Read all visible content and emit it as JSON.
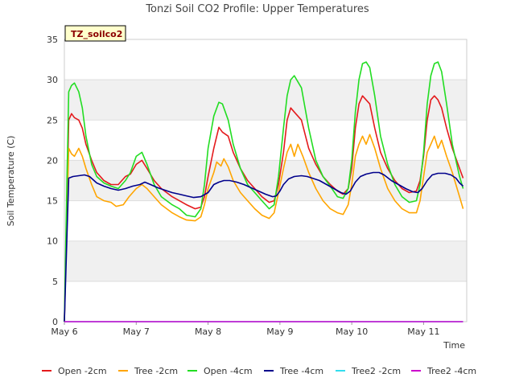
{
  "chart_data": {
    "type": "line",
    "title": "Tonzi Soil CO2 Profile: Upper Temperatures",
    "badge": "TZ_soilco2",
    "xlabel": "Time",
    "ylabel": "Soil Temperature (C)",
    "xlim": [
      0,
      5.6
    ],
    "ylim": [
      0,
      35
    ],
    "yticks": [
      0,
      5,
      10,
      15,
      20,
      25,
      30,
      35
    ],
    "xticks": [
      {
        "value": 0,
        "label": "May 6"
      },
      {
        "value": 1,
        "label": "May 7"
      },
      {
        "value": 2,
        "label": "May 8"
      },
      {
        "value": 3,
        "label": "May 9"
      },
      {
        "value": 4,
        "label": "May 10"
      },
      {
        "value": 5,
        "label": "May 11"
      }
    ],
    "grid_bands": true,
    "legend_position": "bottom",
    "series": [
      {
        "name": "Open -2cm",
        "color": "#e41a1c",
        "points": [
          [
            0,
            0
          ],
          [
            0.03,
            12
          ],
          [
            0.06,
            25
          ],
          [
            0.1,
            25.8
          ],
          [
            0.14,
            25.3
          ],
          [
            0.2,
            25
          ],
          [
            0.25,
            24
          ],
          [
            0.3,
            22
          ],
          [
            0.38,
            20
          ],
          [
            0.45,
            18.5
          ],
          [
            0.55,
            17.5
          ],
          [
            0.65,
            17
          ],
          [
            0.75,
            17
          ],
          [
            0.85,
            18
          ],
          [
            0.92,
            18.3
          ],
          [
            1.0,
            19.5
          ],
          [
            1.08,
            20
          ],
          [
            1.15,
            19
          ],
          [
            1.25,
            17.5
          ],
          [
            1.35,
            16.5
          ],
          [
            1.5,
            15.5
          ],
          [
            1.6,
            15
          ],
          [
            1.7,
            14.5
          ],
          [
            1.82,
            14
          ],
          [
            1.9,
            14.2
          ],
          [
            1.95,
            15.5
          ],
          [
            2.0,
            18
          ],
          [
            2.08,
            21.5
          ],
          [
            2.15,
            24.1
          ],
          [
            2.2,
            23.5
          ],
          [
            2.28,
            23
          ],
          [
            2.35,
            21
          ],
          [
            2.45,
            19
          ],
          [
            2.55,
            17.5
          ],
          [
            2.65,
            16.5
          ],
          [
            2.75,
            15.5
          ],
          [
            2.85,
            14.8
          ],
          [
            2.92,
            15
          ],
          [
            2.98,
            17
          ],
          [
            3.05,
            21
          ],
          [
            3.1,
            25
          ],
          [
            3.15,
            26.5
          ],
          [
            3.2,
            26
          ],
          [
            3.3,
            25
          ],
          [
            3.4,
            21.5
          ],
          [
            3.5,
            19.5
          ],
          [
            3.6,
            18
          ],
          [
            3.7,
            17
          ],
          [
            3.8,
            16.2
          ],
          [
            3.88,
            15.8
          ],
          [
            3.95,
            16.5
          ],
          [
            4.0,
            19
          ],
          [
            4.05,
            24
          ],
          [
            4.1,
            27
          ],
          [
            4.15,
            28
          ],
          [
            4.2,
            27.5
          ],
          [
            4.25,
            27
          ],
          [
            4.32,
            24
          ],
          [
            4.4,
            21
          ],
          [
            4.5,
            19
          ],
          [
            4.6,
            17.5
          ],
          [
            4.7,
            16.5
          ],
          [
            4.8,
            16
          ],
          [
            4.9,
            16.2
          ],
          [
            4.95,
            17.5
          ],
          [
            5.0,
            20.5
          ],
          [
            5.05,
            25
          ],
          [
            5.1,
            27.5
          ],
          [
            5.15,
            28
          ],
          [
            5.2,
            27.5
          ],
          [
            5.25,
            26.5
          ],
          [
            5.32,
            24
          ],
          [
            5.4,
            21.5
          ],
          [
            5.5,
            19
          ],
          [
            5.55,
            17.8
          ]
        ]
      },
      {
        "name": "Tree -2cm",
        "color": "#ffa500",
        "points": [
          [
            0,
            0
          ],
          [
            0.03,
            11
          ],
          [
            0.06,
            21.5
          ],
          [
            0.1,
            20.8
          ],
          [
            0.14,
            20.5
          ],
          [
            0.2,
            21.5
          ],
          [
            0.25,
            20.5
          ],
          [
            0.3,
            19
          ],
          [
            0.38,
            17
          ],
          [
            0.45,
            15.5
          ],
          [
            0.55,
            15
          ],
          [
            0.65,
            14.8
          ],
          [
            0.72,
            14.3
          ],
          [
            0.82,
            14.5
          ],
          [
            0.9,
            15.5
          ],
          [
            1.0,
            16.5
          ],
          [
            1.08,
            17
          ],
          [
            1.15,
            16.5
          ],
          [
            1.25,
            15.5
          ],
          [
            1.35,
            14.5
          ],
          [
            1.5,
            13.5
          ],
          [
            1.6,
            13
          ],
          [
            1.7,
            12.6
          ],
          [
            1.82,
            12.5
          ],
          [
            1.9,
            13
          ],
          [
            1.95,
            14.5
          ],
          [
            2.0,
            16.5
          ],
          [
            2.08,
            18.5
          ],
          [
            2.12,
            19.8
          ],
          [
            2.18,
            19.3
          ],
          [
            2.22,
            20.2
          ],
          [
            2.28,
            19.2
          ],
          [
            2.35,
            17.5
          ],
          [
            2.45,
            16
          ],
          [
            2.55,
            15
          ],
          [
            2.65,
            14
          ],
          [
            2.75,
            13.2
          ],
          [
            2.85,
            12.8
          ],
          [
            2.92,
            13.5
          ],
          [
            2.98,
            16
          ],
          [
            3.05,
            19
          ],
          [
            3.1,
            21
          ],
          [
            3.15,
            22
          ],
          [
            3.2,
            20.5
          ],
          [
            3.25,
            22
          ],
          [
            3.32,
            20.5
          ],
          [
            3.4,
            18.5
          ],
          [
            3.5,
            16.5
          ],
          [
            3.6,
            15
          ],
          [
            3.7,
            14
          ],
          [
            3.8,
            13.5
          ],
          [
            3.88,
            13.3
          ],
          [
            3.95,
            14.5
          ],
          [
            4.0,
            17
          ],
          [
            4.05,
            20.5
          ],
          [
            4.1,
            22
          ],
          [
            4.15,
            23
          ],
          [
            4.2,
            22
          ],
          [
            4.25,
            23.2
          ],
          [
            4.32,
            21.5
          ],
          [
            4.4,
            19
          ],
          [
            4.5,
            16.5
          ],
          [
            4.6,
            15
          ],
          [
            4.7,
            14
          ],
          [
            4.8,
            13.5
          ],
          [
            4.9,
            13.5
          ],
          [
            4.95,
            15
          ],
          [
            5.0,
            18
          ],
          [
            5.05,
            21
          ],
          [
            5.1,
            22
          ],
          [
            5.15,
            23
          ],
          [
            5.2,
            21.5
          ],
          [
            5.25,
            22.5
          ],
          [
            5.32,
            20.5
          ],
          [
            5.4,
            18.5
          ],
          [
            5.5,
            15.5
          ],
          [
            5.55,
            14
          ]
        ]
      },
      {
        "name": "Open -4cm",
        "color": "#22dd22",
        "points": [
          [
            0,
            0
          ],
          [
            0.03,
            15
          ],
          [
            0.06,
            28.5
          ],
          [
            0.1,
            29.3
          ],
          [
            0.14,
            29.6
          ],
          [
            0.2,
            28.5
          ],
          [
            0.25,
            26.5
          ],
          [
            0.3,
            23
          ],
          [
            0.38,
            19.5
          ],
          [
            0.45,
            18
          ],
          [
            0.55,
            17.2
          ],
          [
            0.65,
            16.8
          ],
          [
            0.75,
            16.5
          ],
          [
            0.85,
            17.5
          ],
          [
            0.92,
            18.5
          ],
          [
            1.0,
            20.5
          ],
          [
            1.08,
            21
          ],
          [
            1.15,
            19.5
          ],
          [
            1.25,
            17
          ],
          [
            1.35,
            15.5
          ],
          [
            1.5,
            14.5
          ],
          [
            1.6,
            14
          ],
          [
            1.7,
            13.2
          ],
          [
            1.82,
            13
          ],
          [
            1.9,
            14
          ],
          [
            1.95,
            17
          ],
          [
            2.0,
            21.5
          ],
          [
            2.08,
            25.5
          ],
          [
            2.15,
            27.2
          ],
          [
            2.2,
            27
          ],
          [
            2.28,
            25
          ],
          [
            2.35,
            22
          ],
          [
            2.45,
            19
          ],
          [
            2.55,
            17
          ],
          [
            2.65,
            16
          ],
          [
            2.75,
            15
          ],
          [
            2.85,
            14
          ],
          [
            2.92,
            14.5
          ],
          [
            2.98,
            18
          ],
          [
            3.05,
            24
          ],
          [
            3.1,
            28
          ],
          [
            3.15,
            30
          ],
          [
            3.2,
            30.5
          ],
          [
            3.3,
            29
          ],
          [
            3.4,
            24
          ],
          [
            3.5,
            20
          ],
          [
            3.6,
            18
          ],
          [
            3.7,
            16.8
          ],
          [
            3.8,
            15.5
          ],
          [
            3.88,
            15.3
          ],
          [
            3.95,
            16.5
          ],
          [
            4.0,
            20
          ],
          [
            4.05,
            26
          ],
          [
            4.1,
            30
          ],
          [
            4.15,
            32
          ],
          [
            4.2,
            32.2
          ],
          [
            4.25,
            31.5
          ],
          [
            4.32,
            28
          ],
          [
            4.4,
            23
          ],
          [
            4.5,
            19.5
          ],
          [
            4.6,
            17
          ],
          [
            4.7,
            15.5
          ],
          [
            4.8,
            14.8
          ],
          [
            4.9,
            15
          ],
          [
            4.95,
            17
          ],
          [
            5.0,
            21
          ],
          [
            5.05,
            27
          ],
          [
            5.1,
            30.5
          ],
          [
            5.15,
            32
          ],
          [
            5.2,
            32.2
          ],
          [
            5.25,
            31
          ],
          [
            5.32,
            27
          ],
          [
            5.4,
            22
          ],
          [
            5.5,
            18
          ],
          [
            5.55,
            16.5
          ]
        ]
      },
      {
        "name": "Tree -4cm",
        "color": "#00008b",
        "points": [
          [
            0,
            0
          ],
          [
            0.03,
            9
          ],
          [
            0.06,
            17.8
          ],
          [
            0.12,
            18
          ],
          [
            0.2,
            18.1
          ],
          [
            0.28,
            18.2
          ],
          [
            0.35,
            18
          ],
          [
            0.45,
            17.2
          ],
          [
            0.55,
            16.8
          ],
          [
            0.65,
            16.5
          ],
          [
            0.75,
            16.3
          ],
          [
            0.85,
            16.5
          ],
          [
            0.95,
            16.8
          ],
          [
            1.05,
            17
          ],
          [
            1.12,
            17.3
          ],
          [
            1.2,
            17
          ],
          [
            1.3,
            16.6
          ],
          [
            1.4,
            16.3
          ],
          [
            1.5,
            16
          ],
          [
            1.6,
            15.8
          ],
          [
            1.7,
            15.6
          ],
          [
            1.8,
            15.4
          ],
          [
            1.9,
            15.5
          ],
          [
            2.0,
            16
          ],
          [
            2.08,
            17
          ],
          [
            2.15,
            17.3
          ],
          [
            2.22,
            17.5
          ],
          [
            2.3,
            17.5
          ],
          [
            2.4,
            17.3
          ],
          [
            2.5,
            17
          ],
          [
            2.6,
            16.6
          ],
          [
            2.7,
            16.2
          ],
          [
            2.8,
            15.8
          ],
          [
            2.9,
            15.5
          ],
          [
            2.95,
            15.6
          ],
          [
            3.0,
            16.2
          ],
          [
            3.05,
            17
          ],
          [
            3.12,
            17.7
          ],
          [
            3.2,
            18
          ],
          [
            3.3,
            18.1
          ],
          [
            3.38,
            18
          ],
          [
            3.45,
            17.8
          ],
          [
            3.55,
            17.5
          ],
          [
            3.65,
            17
          ],
          [
            3.75,
            16.5
          ],
          [
            3.85,
            16
          ],
          [
            3.92,
            15.8
          ],
          [
            3.98,
            16.2
          ],
          [
            4.05,
            17.3
          ],
          [
            4.12,
            18
          ],
          [
            4.2,
            18.3
          ],
          [
            4.3,
            18.5
          ],
          [
            4.38,
            18.5
          ],
          [
            4.45,
            18.2
          ],
          [
            4.55,
            17.5
          ],
          [
            4.65,
            17
          ],
          [
            4.75,
            16.5
          ],
          [
            4.85,
            16.1
          ],
          [
            4.92,
            16
          ],
          [
            4.98,
            16.5
          ],
          [
            5.05,
            17.5
          ],
          [
            5.12,
            18.2
          ],
          [
            5.2,
            18.4
          ],
          [
            5.3,
            18.4
          ],
          [
            5.38,
            18.2
          ],
          [
            5.45,
            17.8
          ],
          [
            5.5,
            17.2
          ],
          [
            5.55,
            16.8
          ]
        ]
      },
      {
        "name": "Tree2 -2cm",
        "color": "#33ddee",
        "points": [
          [
            0,
            0
          ],
          [
            5.55,
            0
          ]
        ]
      },
      {
        "name": "Tree2 -4cm",
        "color": "#cc00cc",
        "points": [
          [
            0,
            0
          ],
          [
            5.55,
            0
          ]
        ]
      }
    ]
  }
}
